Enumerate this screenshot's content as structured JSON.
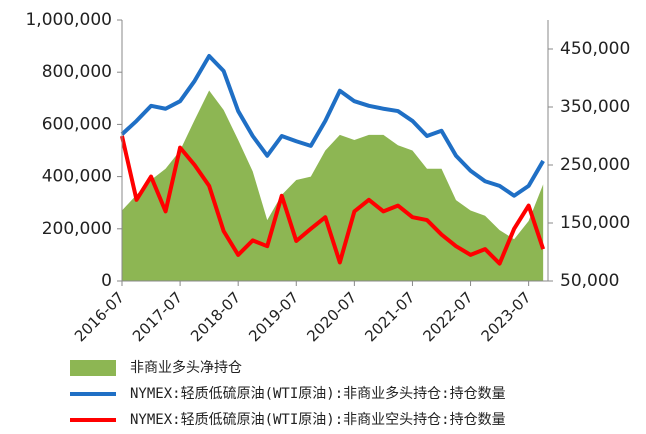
{
  "chart_data": {
    "type": "line",
    "x": [
      "2016-07",
      "2016-10",
      "2017-01",
      "2017-04",
      "2017-07",
      "2017-10",
      "2018-01",
      "2018-04",
      "2018-07",
      "2018-10",
      "2019-01",
      "2019-04",
      "2019-07",
      "2019-10",
      "2020-01",
      "2020-04",
      "2020-07",
      "2020-10",
      "2021-01",
      "2021-04",
      "2021-07",
      "2021-10",
      "2022-01",
      "2022-04",
      "2022-07",
      "2022-10",
      "2023-01",
      "2023-04",
      "2023-07",
      "2023-10"
    ],
    "series": [
      {
        "name": "非商业多头净持仓",
        "type": "area",
        "color": "#8db653",
        "values": [
          270000,
          330000,
          387000,
          430000,
          500000,
          617000,
          730000,
          655000,
          540000,
          420000,
          233000,
          330000,
          387000,
          400000,
          500000,
          560000,
          540000,
          560000,
          560000,
          520000,
          500000,
          430000,
          430000,
          310000,
          270000,
          250000,
          195000,
          160000,
          230000,
          370000
        ]
      },
      {
        "name": "NYMEX:轻质低硫原油(WTI原油):非商业多头持仓:持仓数量",
        "type": "line",
        "axis": "y2",
        "color": "#1f6fc5",
        "values": [
          303000,
          326000,
          352000,
          347000,
          360000,
          395000,
          438000,
          412000,
          343000,
          300000,
          266000,
          300000,
          291000,
          283000,
          326000,
          378000,
          360000,
          352000,
          347000,
          343000,
          326000,
          300000,
          309000,
          266000,
          240000,
          222000,
          214000,
          197000,
          214000,
          257000
        ]
      },
      {
        "name": "NYMEX:轻质低硫原油(WTI原油):非商业空头持仓:持仓数量",
        "type": "line",
        "axis": "y2",
        "color": "#ff0000",
        "values": [
          300000,
          190000,
          230000,
          170000,
          280000,
          250000,
          214000,
          136000,
          95000,
          120000,
          110000,
          197000,
          119000,
          140000,
          160000,
          82000,
          170000,
          190000,
          170000,
          180000,
          160000,
          155000,
          130000,
          110000,
          95000,
          105000,
          80000,
          140000,
          180000,
          105000
        ]
      }
    ],
    "xlim": [
      "2016-07",
      "2023-11"
    ],
    "xticks": [
      "2016-07",
      "2017-07",
      "2018-07",
      "2019-07",
      "2020-07",
      "2021-07",
      "2022-07",
      "2023-07"
    ],
    "ylim": [
      0,
      1000000
    ],
    "yticks": [
      0,
      {
        "value": 200000,
        "label": "200,000"
      },
      {
        "value": 400000,
        "label": "400,000"
      },
      {
        "value": 600000,
        "label": "600,000"
      },
      {
        "value": 800000,
        "label": "800,000"
      },
      {
        "value": 1000000,
        "label": "1,000,000"
      }
    ],
    "y2lim": [
      50000,
      500000
    ],
    "y2ticks": [
      {
        "value": 50000,
        "label": "50,000"
      },
      {
        "value": 150000,
        "label": "150,000"
      },
      {
        "value": 250000,
        "label": "250,000"
      },
      {
        "value": 350000,
        "label": "350,000"
      },
      {
        "value": 450000,
        "label": "450,000"
      }
    ],
    "legend": "bottom"
  }
}
